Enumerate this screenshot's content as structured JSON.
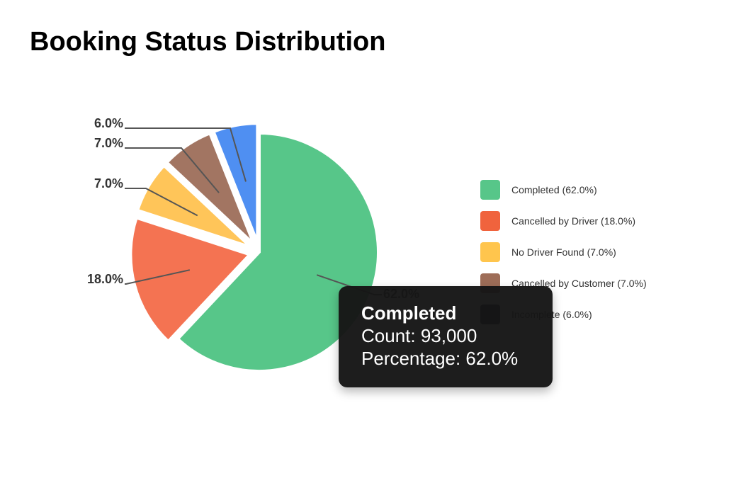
{
  "chart_data": {
    "type": "pie",
    "title": "Booking Status Distribution",
    "categories": [
      "Completed",
      "Cancelled by Driver",
      "No Driver Found",
      "Cancelled by Customer",
      "Incomplete"
    ],
    "values": [
      62.0,
      18.0,
      7.0,
      7.0,
      6.0
    ],
    "data_labels": [
      "62.0%",
      "18.0%",
      "7.0%",
      "7.0%",
      "6.0%"
    ],
    "colors": [
      "#57c689",
      "#f47352",
      "#ffc559",
      "#a27562",
      "#4f8ff2"
    ],
    "legend": {
      "placement": "right",
      "entries": [
        {
          "label": "Completed (62.0%)",
          "color": "#57c689"
        },
        {
          "label": "Cancelled by Driver (18.0%)",
          "color": "#f0633d"
        },
        {
          "label": "No Driver Found (7.0%)",
          "color": "#ffc54d"
        },
        {
          "label": "Cancelled by Customer (7.0%)",
          "color": "#9e6d58"
        },
        {
          "label": "Incomplete (6.0%)",
          "color": "#0a1024"
        }
      ]
    },
    "highlighted_slice": "Completed"
  },
  "tooltip": {
    "title": "Completed",
    "count_line": "Count: 93,000",
    "percentage_line": "Percentage: 62.0%"
  }
}
